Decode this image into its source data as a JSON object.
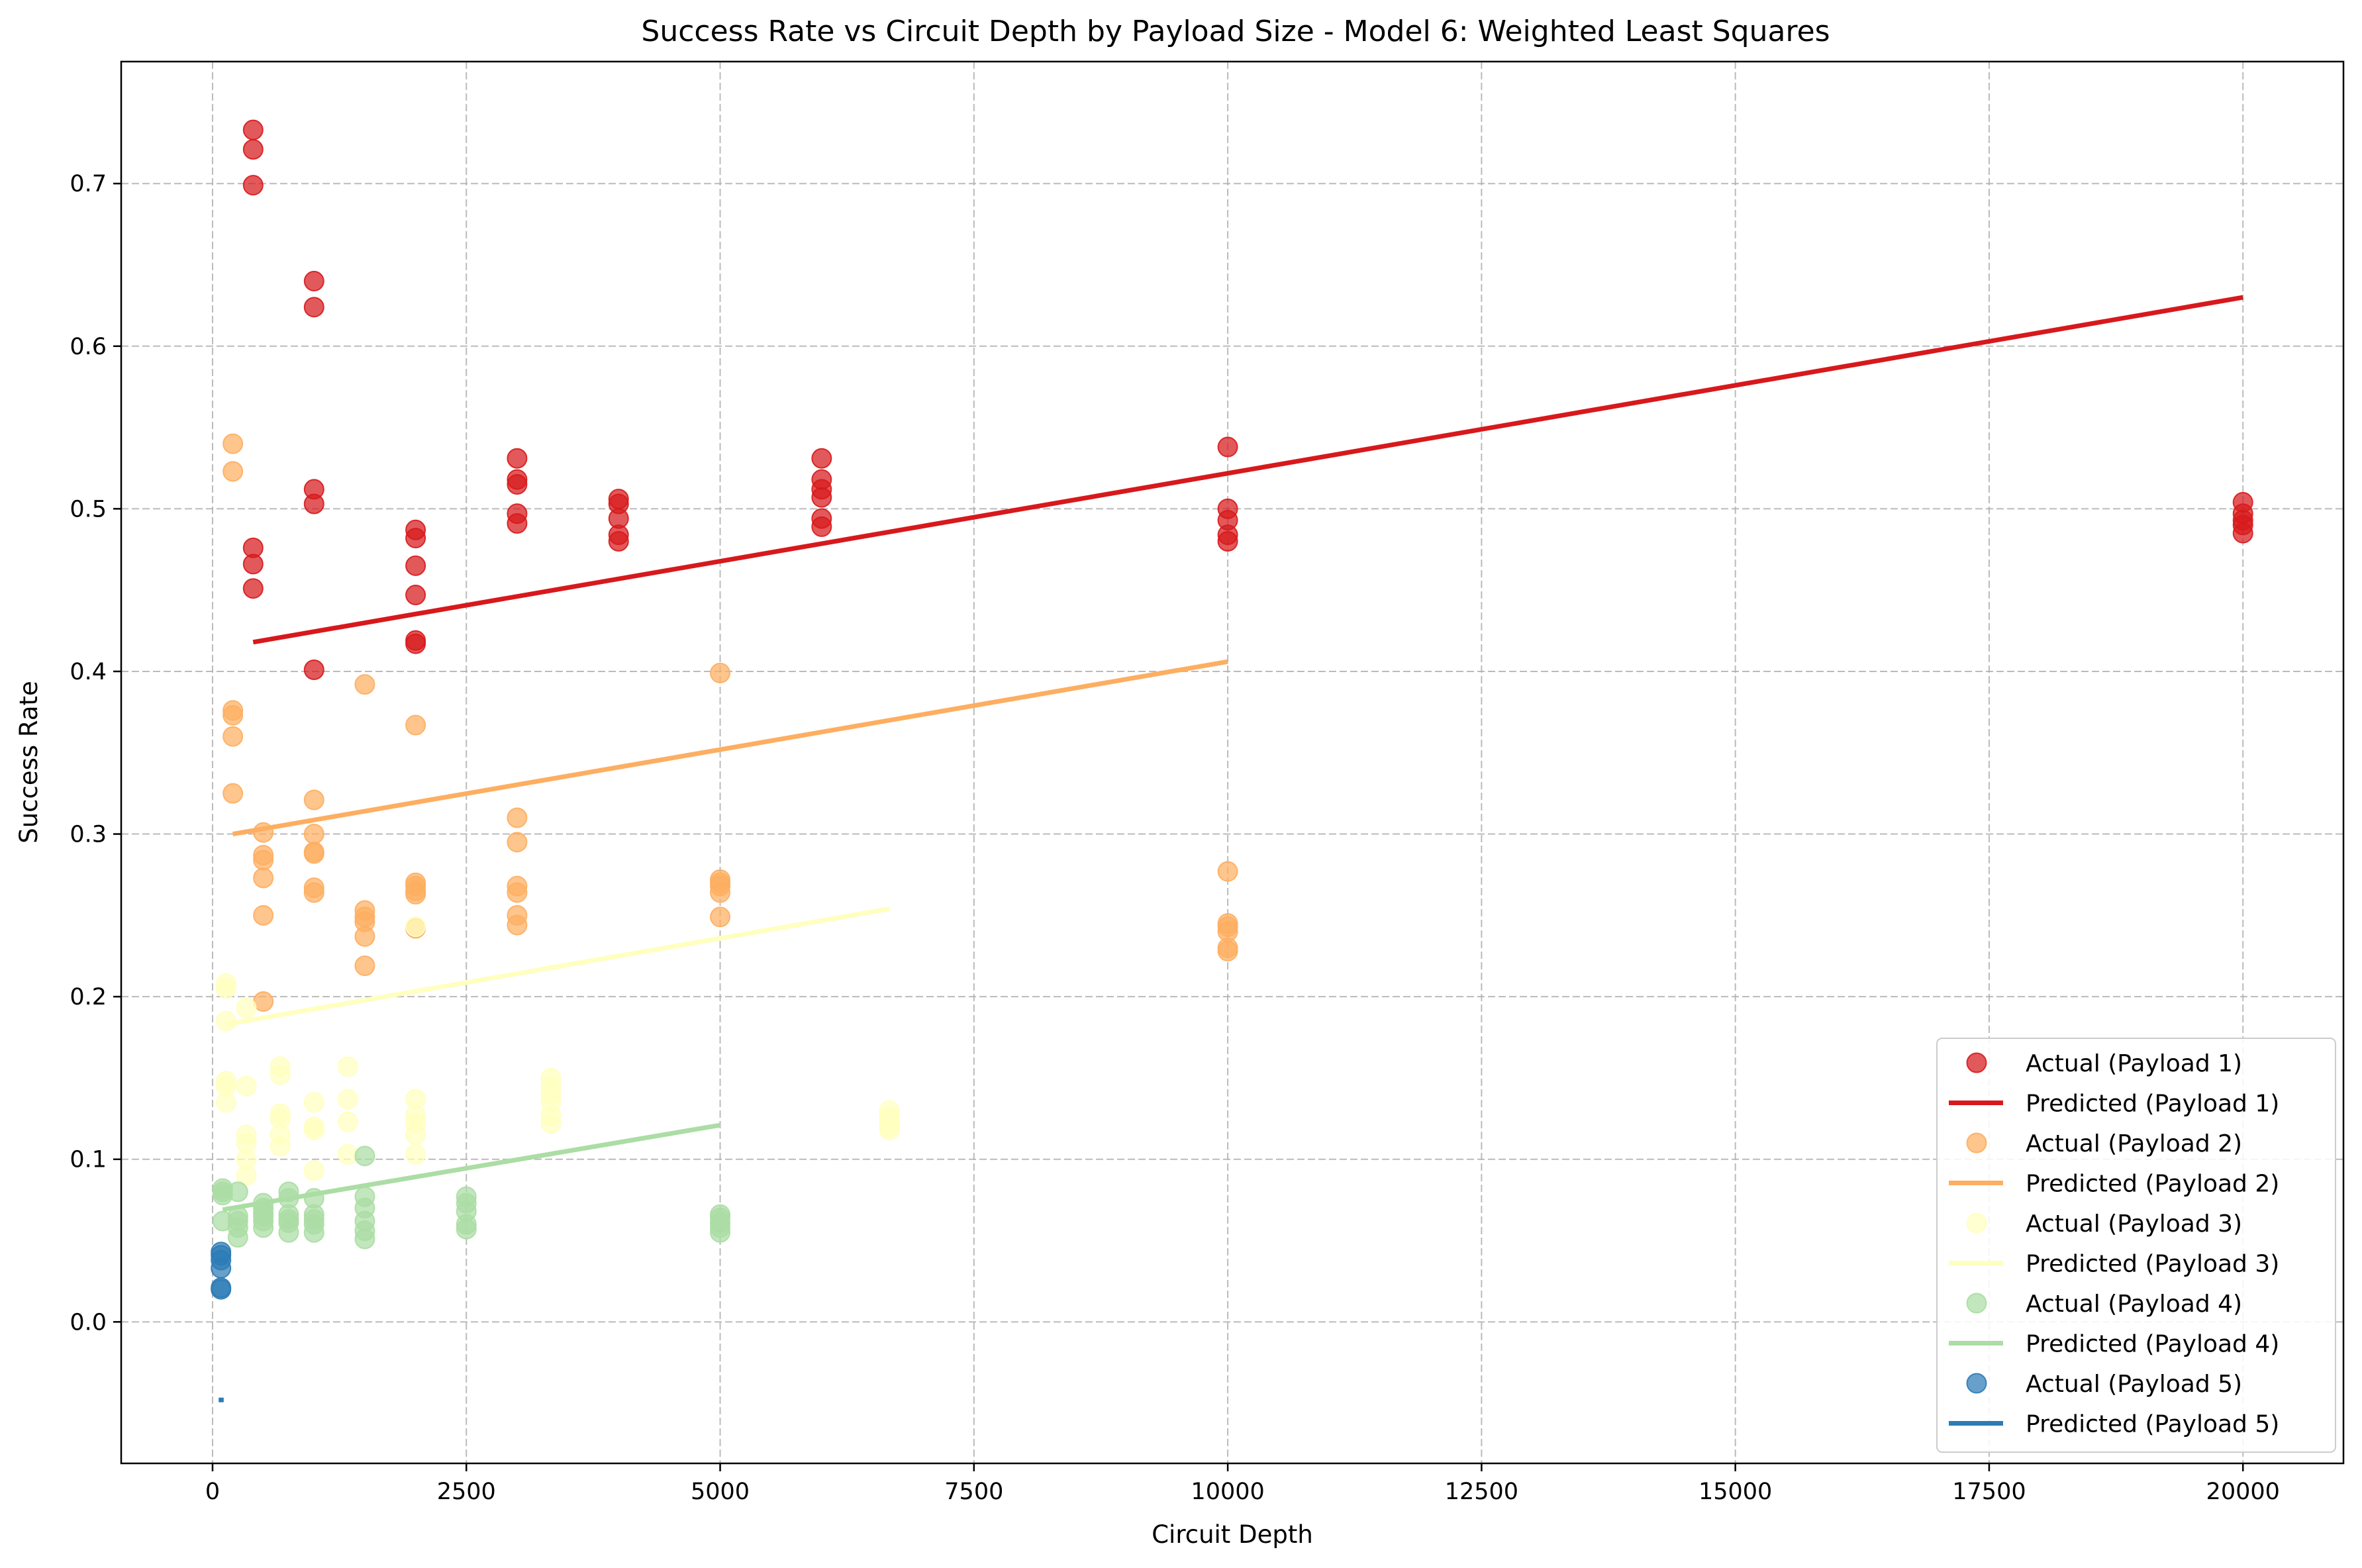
{
  "chart_data": {
    "type": "scatter",
    "title": "Success Rate vs Circuit Depth by Payload Size - Model 6: Weighted Least Squares",
    "xlabel": "Circuit Depth",
    "ylabel": "Success Rate",
    "xlim": [
      -900,
      20990
    ],
    "ylim": [
      -0.087,
      0.775
    ],
    "xticks": [
      0,
      2500,
      5000,
      7500,
      10000,
      12500,
      15000,
      17500,
      20000
    ],
    "yticks": [
      0.0,
      0.1,
      0.2,
      0.3,
      0.4,
      0.5,
      0.6,
      0.7
    ],
    "xtick_labels": [
      "0",
      "2500",
      "5000",
      "7500",
      "10000",
      "12500",
      "15000",
      "17500",
      "20000"
    ],
    "ytick_labels": [
      "0.0",
      "0.1",
      "0.2",
      "0.3",
      "0.4",
      "0.5",
      "0.6",
      "0.7"
    ],
    "grid": true,
    "legend_position": "bottom-right",
    "series": [
      {
        "name": "Actual (Payload 1)",
        "kind": "scatter",
        "color": "#d7191c",
        "points": [
          [
            400,
            0.733
          ],
          [
            400,
            0.721
          ],
          [
            400,
            0.699
          ],
          [
            400,
            0.476
          ],
          [
            400,
            0.466
          ],
          [
            400,
            0.451
          ],
          [
            1000,
            0.64
          ],
          [
            1000,
            0.624
          ],
          [
            1000,
            0.512
          ],
          [
            1000,
            0.503
          ],
          [
            1000,
            0.401
          ],
          [
            2000,
            0.487
          ],
          [
            2000,
            0.482
          ],
          [
            2000,
            0.465
          ],
          [
            2000,
            0.447
          ],
          [
            2000,
            0.419
          ],
          [
            2000,
            0.417
          ],
          [
            3000,
            0.531
          ],
          [
            3000,
            0.518
          ],
          [
            3000,
            0.515
          ],
          [
            3000,
            0.497
          ],
          [
            3000,
            0.491
          ],
          [
            4000,
            0.506
          ],
          [
            4000,
            0.503
          ],
          [
            4000,
            0.494
          ],
          [
            4000,
            0.484
          ],
          [
            4000,
            0.48
          ],
          [
            6000,
            0.531
          ],
          [
            6000,
            0.518
          ],
          [
            6000,
            0.512
          ],
          [
            6000,
            0.507
          ],
          [
            6000,
            0.494
          ],
          [
            6000,
            0.489
          ],
          [
            10000,
            0.538
          ],
          [
            10000,
            0.5
          ],
          [
            10000,
            0.493
          ],
          [
            10000,
            0.484
          ],
          [
            10000,
            0.48
          ],
          [
            20000,
            0.504
          ],
          [
            20000,
            0.497
          ],
          [
            20000,
            0.493
          ],
          [
            20000,
            0.49
          ],
          [
            20000,
            0.485
          ]
        ]
      },
      {
        "name": "Predicted (Payload 1)",
        "kind": "line",
        "color": "#d7191c",
        "points": [
          [
            400,
            0.418
          ],
          [
            20000,
            0.63
          ]
        ]
      },
      {
        "name": "Actual (Payload 2)",
        "kind": "scatter",
        "color": "#fdae61",
        "points": [
          [
            200,
            0.54
          ],
          [
            200,
            0.523
          ],
          [
            200,
            0.376
          ],
          [
            200,
            0.373
          ],
          [
            200,
            0.36
          ],
          [
            200,
            0.325
          ],
          [
            500,
            0.301
          ],
          [
            500,
            0.287
          ],
          [
            500,
            0.284
          ],
          [
            500,
            0.273
          ],
          [
            500,
            0.25
          ],
          [
            500,
            0.197
          ],
          [
            1000,
            0.321
          ],
          [
            1000,
            0.3
          ],
          [
            1000,
            0.289
          ],
          [
            1000,
            0.288
          ],
          [
            1000,
            0.267
          ],
          [
            1000,
            0.264
          ],
          [
            1500,
            0.392
          ],
          [
            1500,
            0.253
          ],
          [
            1500,
            0.249
          ],
          [
            1500,
            0.246
          ],
          [
            1500,
            0.237
          ],
          [
            1500,
            0.219
          ],
          [
            2000,
            0.367
          ],
          [
            2000,
            0.27
          ],
          [
            2000,
            0.268
          ],
          [
            2000,
            0.265
          ],
          [
            2000,
            0.263
          ],
          [
            2000,
            0.242
          ],
          [
            3000,
            0.31
          ],
          [
            3000,
            0.295
          ],
          [
            3000,
            0.268
          ],
          [
            3000,
            0.264
          ],
          [
            3000,
            0.25
          ],
          [
            3000,
            0.244
          ],
          [
            5000,
            0.399
          ],
          [
            5000,
            0.272
          ],
          [
            5000,
            0.27
          ],
          [
            5000,
            0.268
          ],
          [
            5000,
            0.264
          ],
          [
            5000,
            0.249
          ],
          [
            10000,
            0.277
          ],
          [
            10000,
            0.245
          ],
          [
            10000,
            0.243
          ],
          [
            10000,
            0.24
          ],
          [
            10000,
            0.23
          ],
          [
            10000,
            0.228
          ]
        ]
      },
      {
        "name": "Predicted (Payload 2)",
        "kind": "line",
        "color": "#fdae61",
        "points": [
          [
            200,
            0.3
          ],
          [
            10000,
            0.406
          ]
        ]
      },
      {
        "name": "Actual (Payload 3)",
        "kind": "scatter",
        "color": "#ffffbf",
        "points": [
          [
            133,
            0.208
          ],
          [
            133,
            0.205
          ],
          [
            133,
            0.185
          ],
          [
            133,
            0.148
          ],
          [
            133,
            0.145
          ],
          [
            133,
            0.135
          ],
          [
            333,
            0.193
          ],
          [
            333,
            0.145
          ],
          [
            333,
            0.115
          ],
          [
            333,
            0.11
          ],
          [
            333,
            0.1
          ],
          [
            333,
            0.09
          ],
          [
            667,
            0.157
          ],
          [
            667,
            0.152
          ],
          [
            667,
            0.128
          ],
          [
            667,
            0.125
          ],
          [
            667,
            0.115
          ],
          [
            667,
            0.108
          ],
          [
            1000,
            0.135
          ],
          [
            1000,
            0.12
          ],
          [
            1000,
            0.118
          ],
          [
            1000,
            0.093
          ],
          [
            1333,
            0.157
          ],
          [
            1333,
            0.137
          ],
          [
            1333,
            0.123
          ],
          [
            1333,
            0.103
          ],
          [
            2000,
            0.243
          ],
          [
            2000,
            0.137
          ],
          [
            2000,
            0.127
          ],
          [
            2000,
            0.122
          ],
          [
            2000,
            0.115
          ],
          [
            2000,
            0.103
          ],
          [
            3333,
            0.15
          ],
          [
            3333,
            0.145
          ],
          [
            3333,
            0.14
          ],
          [
            3333,
            0.135
          ],
          [
            3333,
            0.127
          ],
          [
            3333,
            0.122
          ],
          [
            6667,
            0.13
          ],
          [
            6667,
            0.126
          ],
          [
            6667,
            0.123
          ],
          [
            6667,
            0.12
          ],
          [
            6667,
            0.118
          ]
        ]
      },
      {
        "name": "Predicted (Payload 3)",
        "kind": "line",
        "color": "#ffffbf",
        "points": [
          [
            133,
            0.183
          ],
          [
            6667,
            0.254
          ]
        ]
      },
      {
        "name": "Actual (Payload 4)",
        "kind": "scatter",
        "color": "#abdda4",
        "points": [
          [
            100,
            0.082
          ],
          [
            100,
            0.08
          ],
          [
            100,
            0.078
          ],
          [
            100,
            0.062
          ],
          [
            250,
            0.08
          ],
          [
            250,
            0.065
          ],
          [
            250,
            0.062
          ],
          [
            250,
            0.058
          ],
          [
            250,
            0.052
          ],
          [
            500,
            0.073
          ],
          [
            500,
            0.07
          ],
          [
            500,
            0.067
          ],
          [
            500,
            0.065
          ],
          [
            500,
            0.062
          ],
          [
            500,
            0.058
          ],
          [
            750,
            0.08
          ],
          [
            750,
            0.076
          ],
          [
            750,
            0.066
          ],
          [
            750,
            0.063
          ],
          [
            750,
            0.061
          ],
          [
            750,
            0.055
          ],
          [
            1000,
            0.076
          ],
          [
            1000,
            0.066
          ],
          [
            1000,
            0.063
          ],
          [
            1000,
            0.06
          ],
          [
            1000,
            0.055
          ],
          [
            1500,
            0.102
          ],
          [
            1500,
            0.077
          ],
          [
            1500,
            0.07
          ],
          [
            1500,
            0.062
          ],
          [
            1500,
            0.056
          ],
          [
            1500,
            0.051
          ],
          [
            2500,
            0.077
          ],
          [
            2500,
            0.073
          ],
          [
            2500,
            0.068
          ],
          [
            2500,
            0.06
          ],
          [
            2500,
            0.057
          ],
          [
            5000,
            0.066
          ],
          [
            5000,
            0.064
          ],
          [
            5000,
            0.061
          ],
          [
            5000,
            0.058
          ],
          [
            5000,
            0.055
          ]
        ]
      },
      {
        "name": "Predicted (Payload 4)",
        "kind": "line",
        "color": "#abdda4",
        "points": [
          [
            100,
            0.069
          ],
          [
            5000,
            0.121
          ]
        ]
      },
      {
        "name": "Actual (Payload 5)",
        "kind": "scatter",
        "color": "#2c7bb6",
        "points": [
          [
            83,
            0.043
          ],
          [
            83,
            0.041
          ],
          [
            83,
            0.038
          ],
          [
            83,
            0.033
          ],
          [
            83,
            0.021
          ],
          [
            83,
            0.02
          ]
        ]
      },
      {
        "name": "Predicted (Payload 5)",
        "kind": "line",
        "color": "#2c7bb6",
        "points": [
          [
            60,
            -0.048
          ],
          [
            110,
            -0.048
          ]
        ]
      }
    ]
  }
}
